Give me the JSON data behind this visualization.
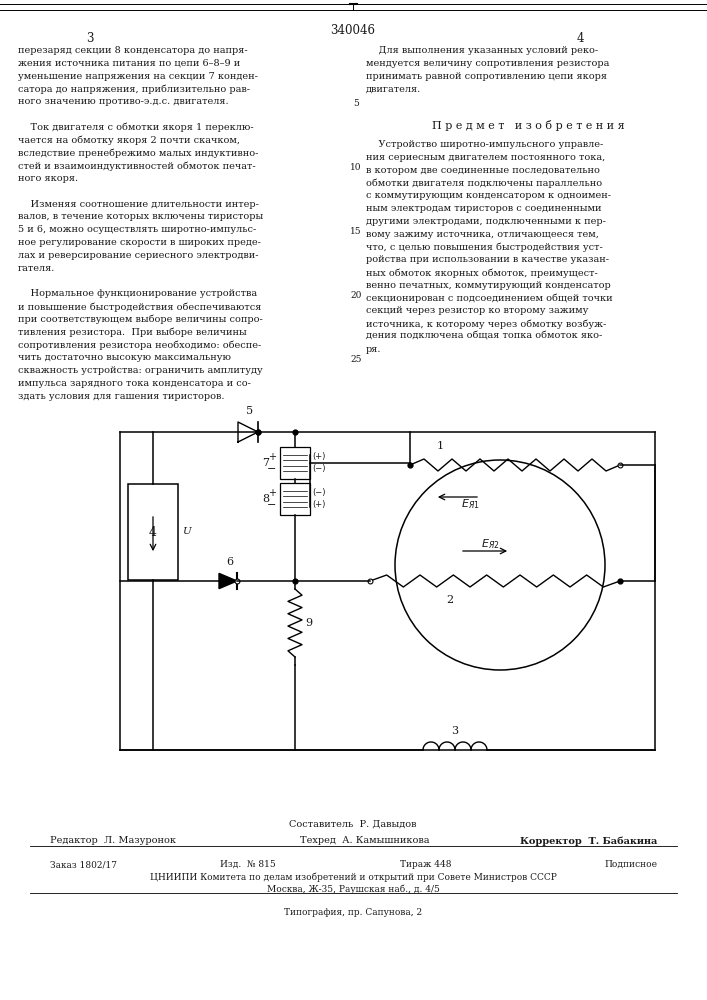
{
  "patent_number": "340046",
  "page_left": "3",
  "page_right": "4",
  "left_col_lines": [
    "перезаряд секции 8 конденсатора до напря-",
    "жения источника питания по цепи 6–8–9 и",
    "уменьшение напряжения на секции 7 конден-",
    "сатора до напряжения, приблизительно рав-",
    "ного значению противо-э.д.с. двигателя.",
    "",
    "    Ток двигателя с обмотки якоря 1 переклю-",
    "чается на обмотку якоря 2 почти скачком,",
    "вследствие пренебрежимо малых индуктивно-",
    "стей и взаимоиндуктивностей обмоток печат-",
    "ного якоря.",
    "",
    "    Изменяя соотношение длительности интер-",
    "валов, в течение которых включены тиристоры",
    "5 и 6, можно осуществлять широтно-импульс-",
    "ное регулирование скорости в широких преде-",
    "лах и реверсирование сериесного электродви-",
    "гателя.",
    "",
    "    Нормальное функционирование устройства",
    "и повышение быстродействия обеспечиваются",
    "при соответствующем выборе величины сопро-",
    "тивления резистора.  При выборе величины",
    "сопротивления резистора необходимо: обеспе-",
    "чить достаточно высокую максимальную",
    "скважность устройства: ограничить амплитуду",
    "импульса зарядного тока конденсатора и со-",
    "здать условия для гашения тиристоров."
  ],
  "right_col_lines_top": [
    "    Для выполнения указанных условий реко-",
    "мендуется величину сопротивления резистора",
    "принимать равной сопротивлению цепи якоря",
    "двигателя."
  ],
  "predmet_title": "П р е д м е т   и з о б р е т е н и я",
  "predmet_lines": [
    "    Устройство широтно-импульсного управле-",
    "ния сериесным двигателем постоянного тока,",
    "в котором две соединенные последовательно",
    "обмотки двигателя подключены параллельно",
    "с коммутирующим конденсатором к одноимен-",
    "ным электродам тиристоров с соединенными",
    "другими электродами, подключенными к пер-",
    "вому зажиму источника, отличающееся тем,",
    "что, с целью повышения быстродействия уст-",
    "ройства при использовании в качестве указан-",
    "ных обмоток якорных обмоток, преимущест-",
    "венно печатных, коммутирующий конденсатор",
    "секционирован с подсоединением общей точки",
    "секций через резистор ко второму зажиму",
    "источника, к которому через обмотку возбуж-",
    "дения подключена общая топка обмоток яко-",
    "ря."
  ],
  "footer_composer": "Составитель  Р. Давыдов",
  "footer_editor": "Редактор  Л. Мазуронок",
  "footer_techred": "Техред  А. Камышникова",
  "footer_corrector": "Корректор  Т. Бабакина",
  "footer_order": "Заказ 1802/17",
  "footer_izd": "Изд.  № 815",
  "footer_tirazh": "Тираж 448",
  "footer_podpisnoe": "Подписное",
  "footer_cniiipi": "ЦНИИПИ Комитета по делам изобретений и открытий при Совете Министров СССР",
  "footer_moscow": "Москва, Ж-35, Раушская наб., д. 4/5",
  "footer_tipografia": "Типография, пр. Сапунова, 2",
  "bg_color": "#ffffff",
  "text_color": "#1a1a1a",
  "line_nums": [
    [
      5,
      5
    ],
    [
      10,
      10
    ],
    [
      15,
      15
    ],
    [
      20,
      20
    ],
    [
      25,
      25
    ]
  ]
}
